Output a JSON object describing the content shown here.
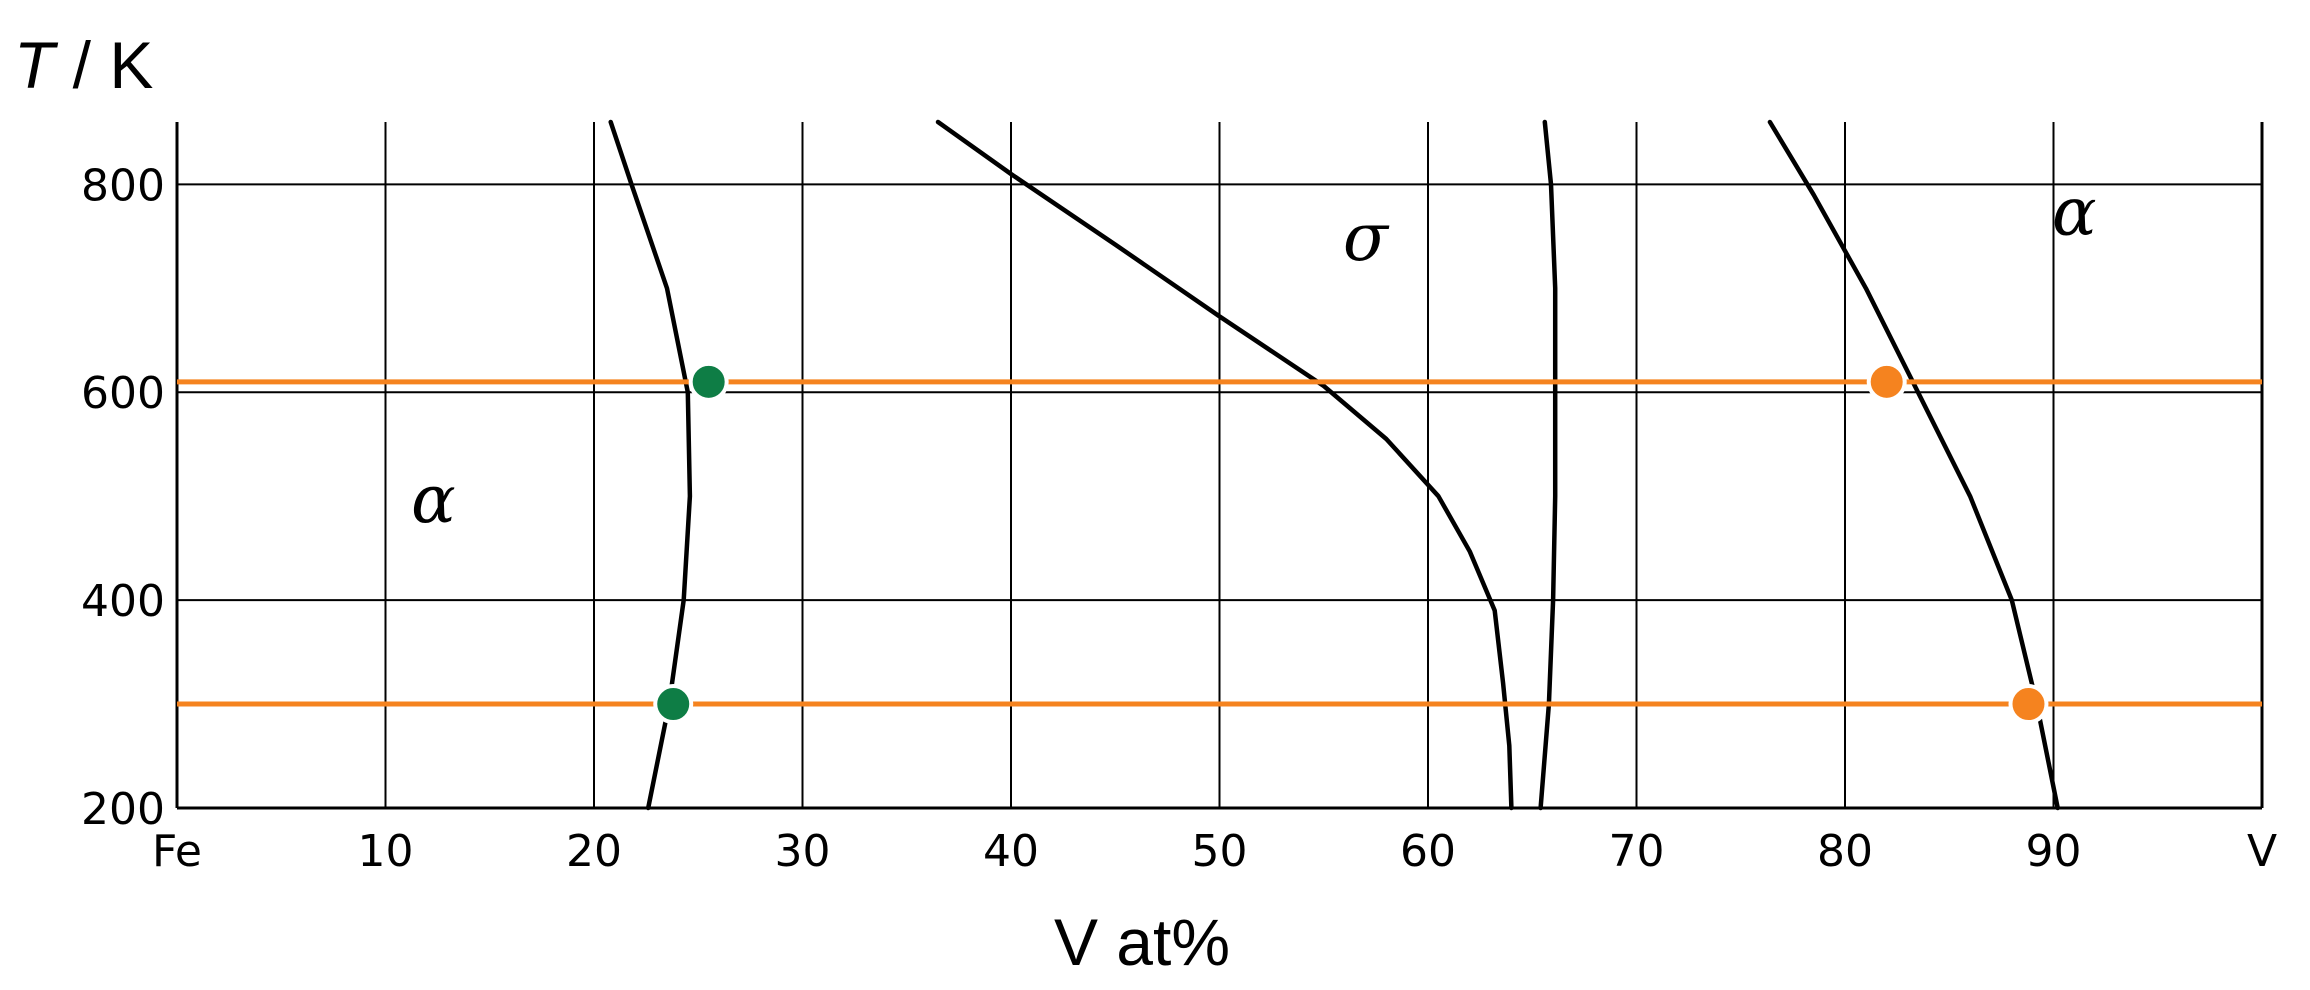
{
  "chart_data": {
    "type": "line",
    "title": "",
    "xlabel": "V at%",
    "ylabel_italic": "T",
    "ylabel_rest": " / K",
    "xlim": [
      0,
      100
    ],
    "ylim": [
      200,
      860
    ],
    "x_ticks": [
      {
        "value": 0,
        "label": "Fe"
      },
      {
        "value": 10,
        "label": "10"
      },
      {
        "value": 20,
        "label": "20"
      },
      {
        "value": 30,
        "label": "30"
      },
      {
        "value": 40,
        "label": "40"
      },
      {
        "value": 50,
        "label": "50"
      },
      {
        "value": 60,
        "label": "60"
      },
      {
        "value": 70,
        "label": "70"
      },
      {
        "value": 80,
        "label": "80"
      },
      {
        "value": 90,
        "label": "90"
      },
      {
        "value": 100,
        "label": "V"
      }
    ],
    "y_ticks": [
      {
        "value": 200,
        "label": "200"
      },
      {
        "value": 400,
        "label": "400"
      },
      {
        "value": 600,
        "label": "600"
      },
      {
        "value": 800,
        "label": "800"
      }
    ],
    "grid": true,
    "grid_color": "#000000",
    "curve_color": "#000000",
    "isotherm_color": "#F5831F",
    "series": [
      {
        "points": [
          [
            22.6,
            200
          ],
          [
            23.6,
            300
          ],
          [
            24.3,
            400
          ],
          [
            24.6,
            500
          ],
          [
            24.5,
            600
          ],
          [
            23.5,
            700
          ],
          [
            21.8,
            800
          ],
          [
            20.8,
            860
          ]
        ]
      },
      {
        "points": [
          [
            36.5,
            860
          ],
          [
            40.0,
            810
          ],
          [
            45.0,
            742
          ],
          [
            50.0,
            673
          ],
          [
            55.0,
            606
          ],
          [
            58.0,
            555
          ],
          [
            60.5,
            500
          ],
          [
            62.0,
            447
          ],
          [
            63.2,
            390
          ],
          [
            63.6,
            320
          ],
          [
            63.9,
            260
          ],
          [
            64.0,
            200
          ]
        ]
      },
      {
        "points": [
          [
            65.4,
            200
          ],
          [
            65.8,
            300
          ],
          [
            66.0,
            400
          ],
          [
            66.1,
            500
          ],
          [
            66.1,
            600
          ],
          [
            66.1,
            700
          ],
          [
            65.9,
            800
          ],
          [
            65.6,
            860
          ]
        ]
      },
      {
        "points": [
          [
            76.4,
            860
          ],
          [
            78.5,
            790
          ],
          [
            81.0,
            700
          ],
          [
            83.5,
            600
          ],
          [
            86.0,
            500
          ],
          [
            88.0,
            400
          ],
          [
            89.2,
            300
          ],
          [
            90.2,
            200
          ]
        ]
      }
    ],
    "isotherms": [
      {
        "value": 610
      },
      {
        "value": 300
      }
    ],
    "markers": [
      {
        "x": 25.5,
        "y": 610,
        "color": "#0E7D45"
      },
      {
        "x": 23.8,
        "y": 300,
        "color": "#0E7D45"
      },
      {
        "x": 82.0,
        "y": 610,
        "color": "#F5831F"
      },
      {
        "x": 88.8,
        "y": 300,
        "color": "#F5831F"
      }
    ],
    "annotations": [
      {
        "text": "α",
        "x": 12.3,
        "y": 475
      },
      {
        "text": "σ",
        "x": 57.0,
        "y": 727
      },
      {
        "text": "α",
        "x": 91.0,
        "y": 752
      }
    ]
  }
}
